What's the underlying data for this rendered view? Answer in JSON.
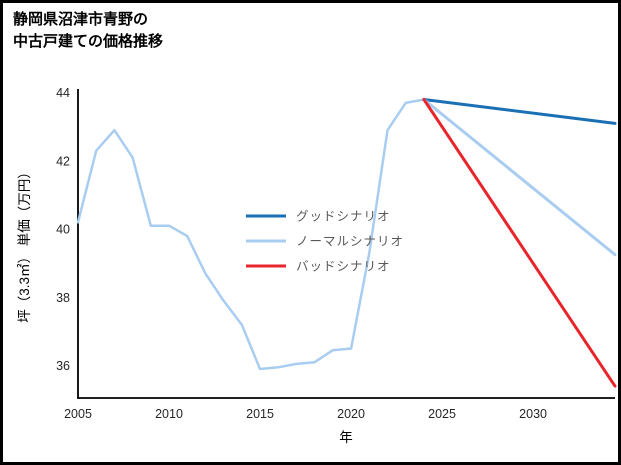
{
  "chart_data": {
    "type": "line",
    "title": "静岡県沼津市青野の\n中古戸建ての価格推移",
    "xlabel": "年",
    "ylabel": "坪（3.3㎡） 単価（万円）",
    "xlim": [
      2005,
      2034.5
    ],
    "ylim": [
      35.05,
      44.05
    ],
    "xticks": [
      2005,
      2010,
      2015,
      2020,
      2025,
      2030
    ],
    "yticks": [
      36,
      38,
      40,
      42,
      44
    ],
    "grid": false,
    "legend_position": "center-left-of-plot",
    "series": [
      {
        "id": "history",
        "label": "",
        "in_legend": false,
        "color": "#a9cdf0",
        "width": 2.5,
        "x": [
          2005,
          2006,
          2007,
          2008,
          2009,
          2010,
          2011,
          2012,
          2013,
          2014,
          2015,
          2016,
          2017,
          2018,
          2019,
          2020,
          2021,
          2022,
          2023,
          2024
        ],
        "values": [
          40.2,
          42.3,
          42.9,
          42.1,
          40.1,
          40.1,
          39.8,
          38.7,
          37.9,
          37.2,
          35.9,
          35.95,
          36.05,
          36.1,
          36.45,
          36.5,
          39.3,
          42.9,
          43.7,
          43.8
        ]
      },
      {
        "id": "good",
        "label": "グッドシナリオ",
        "in_legend": true,
        "color": "#1a6fb5",
        "width": 3,
        "x": [
          2024,
          2034.5
        ],
        "values": [
          43.8,
          43.1
        ]
      },
      {
        "id": "normal",
        "label": "ノーマルシナリオ",
        "in_legend": true,
        "color": "#a9cdf0",
        "width": 3,
        "x": [
          2024,
          2034.5
        ],
        "values": [
          43.8,
          39.25
        ]
      },
      {
        "id": "bad",
        "label": "バッドシナリオ",
        "in_legend": true,
        "color": "#e8252b",
        "width": 3,
        "x": [
          2024,
          2034.5
        ],
        "values": [
          43.8,
          35.4
        ]
      }
    ]
  }
}
